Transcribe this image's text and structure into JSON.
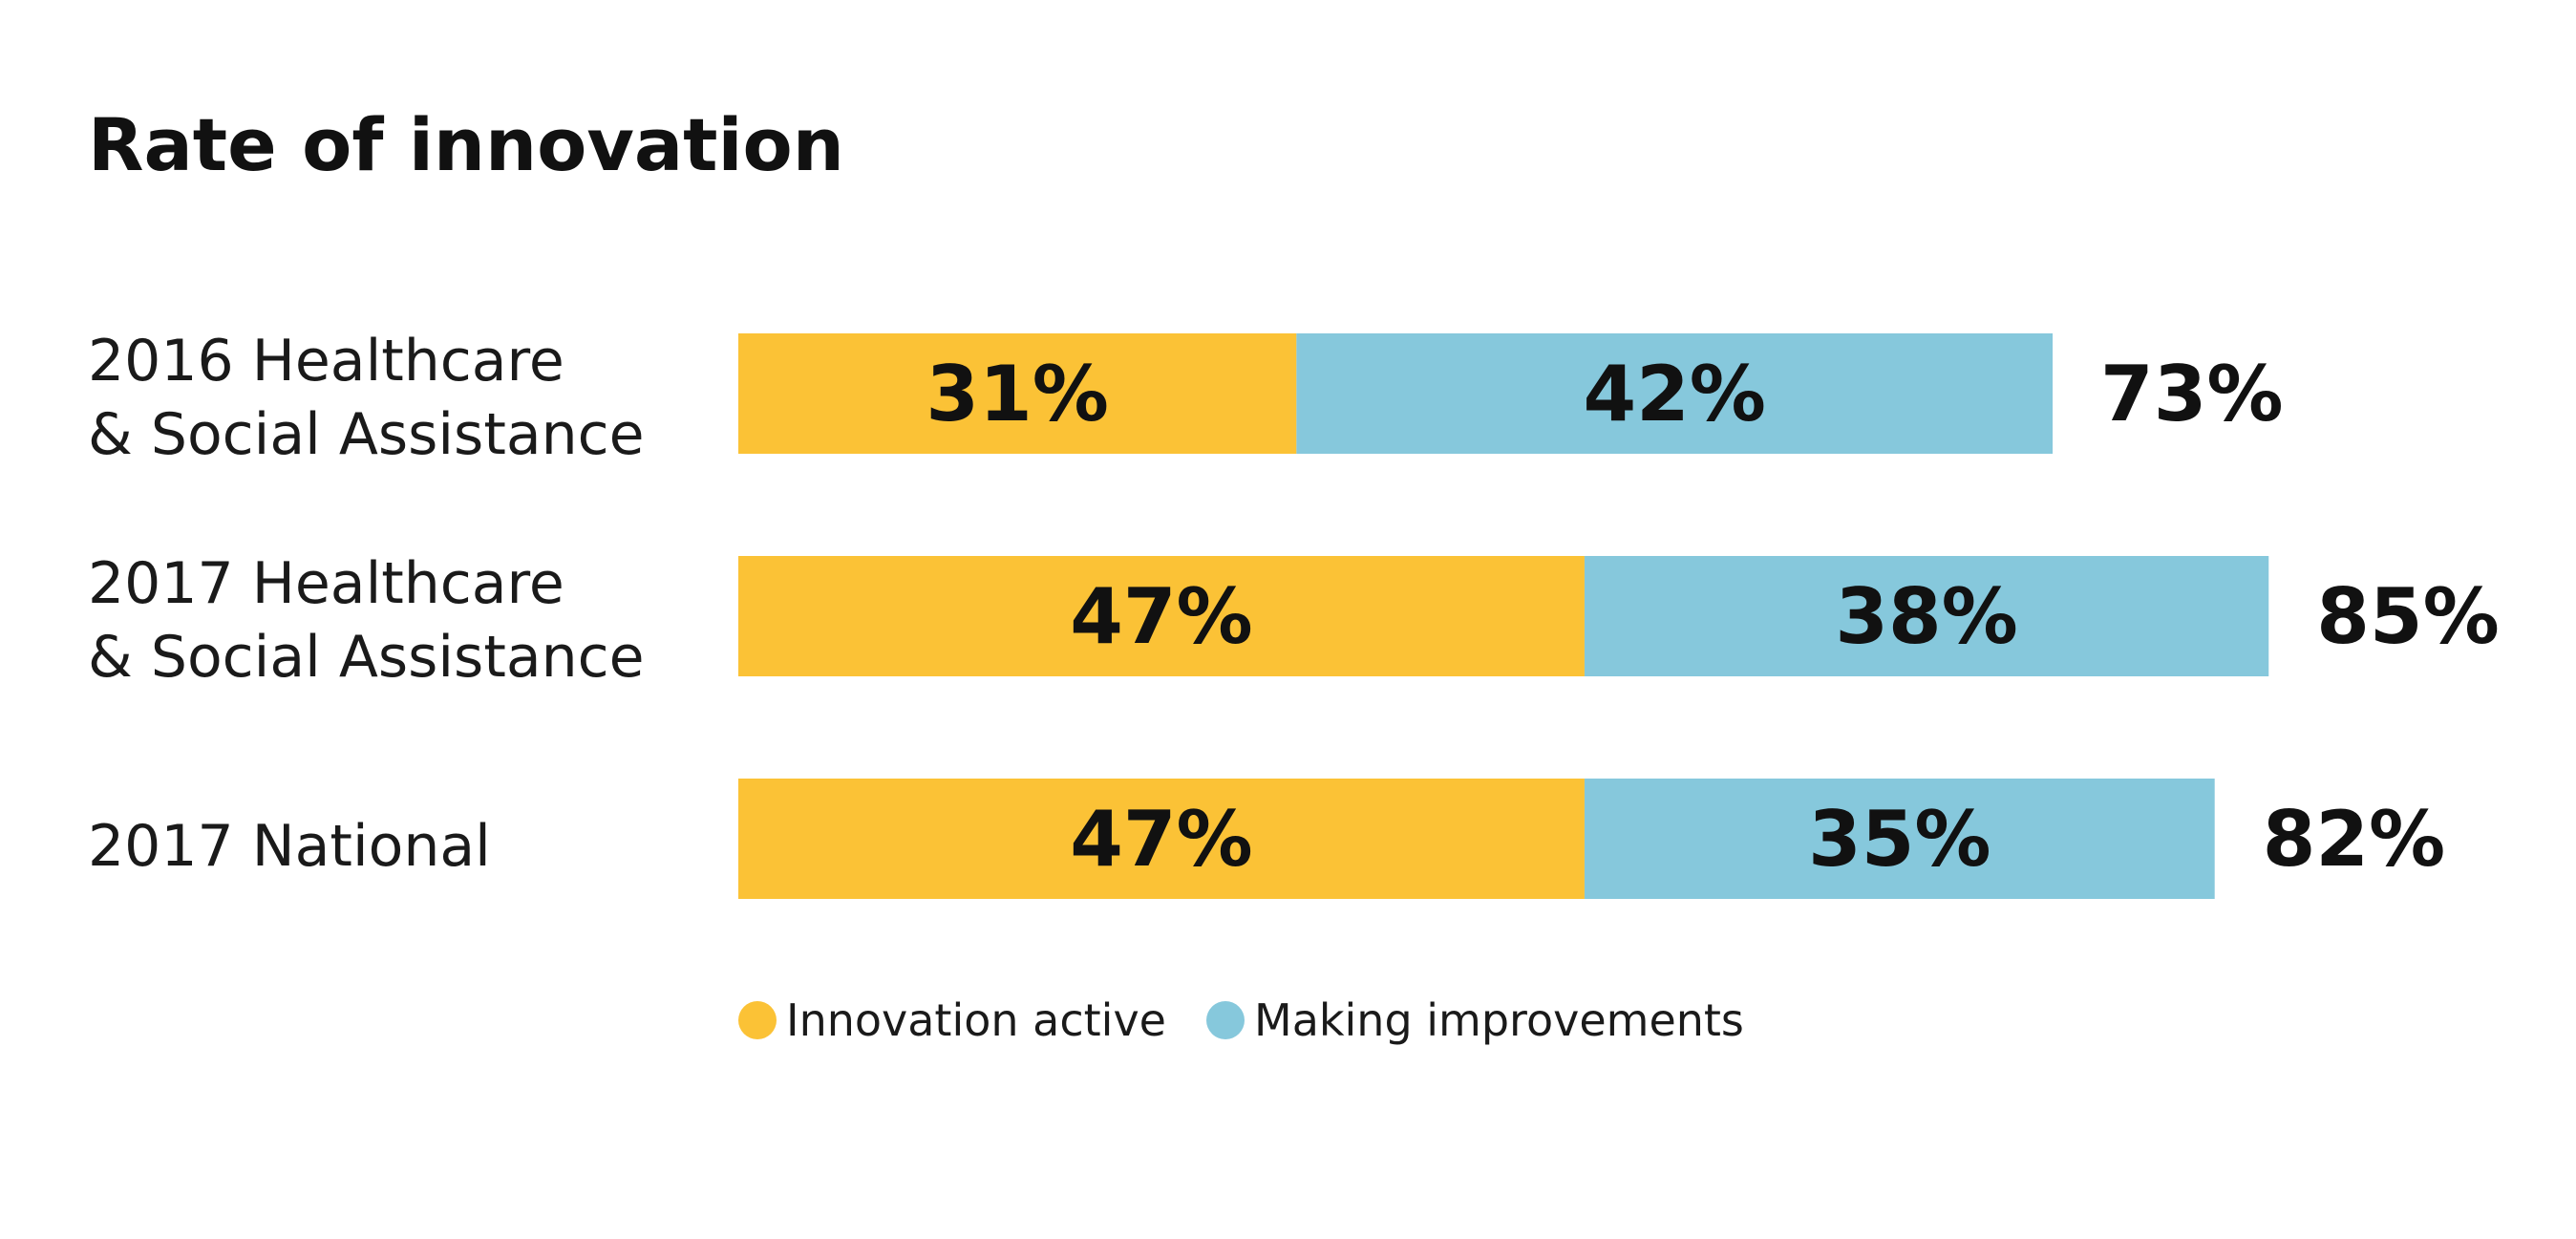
{
  "chart_data": {
    "type": "bar",
    "orientation": "horizontal",
    "stacked": true,
    "title": "Rate of innovation",
    "categories": [
      [
        "2016 Healthcare",
        "& Social Assistance"
      ],
      [
        "2017 Healthcare",
        "& Social Assistance"
      ],
      [
        "2017 National"
      ]
    ],
    "series": [
      {
        "name": "Innovation active",
        "values": [
          31,
          47,
          47
        ],
        "labels": [
          "31%",
          "47%",
          "47%"
        ],
        "color": "#FBC236"
      },
      {
        "name": "Making improvements",
        "values": [
          42,
          38,
          35
        ],
        "labels": [
          "42%",
          "38%",
          "35%"
        ],
        "color": "#86C8DC"
      }
    ],
    "totals": [
      "73%",
      "85%",
      "82%"
    ],
    "xlim": [
      0,
      100
    ],
    "axes_visible": false,
    "grid": false,
    "legend_position": "bottom"
  }
}
